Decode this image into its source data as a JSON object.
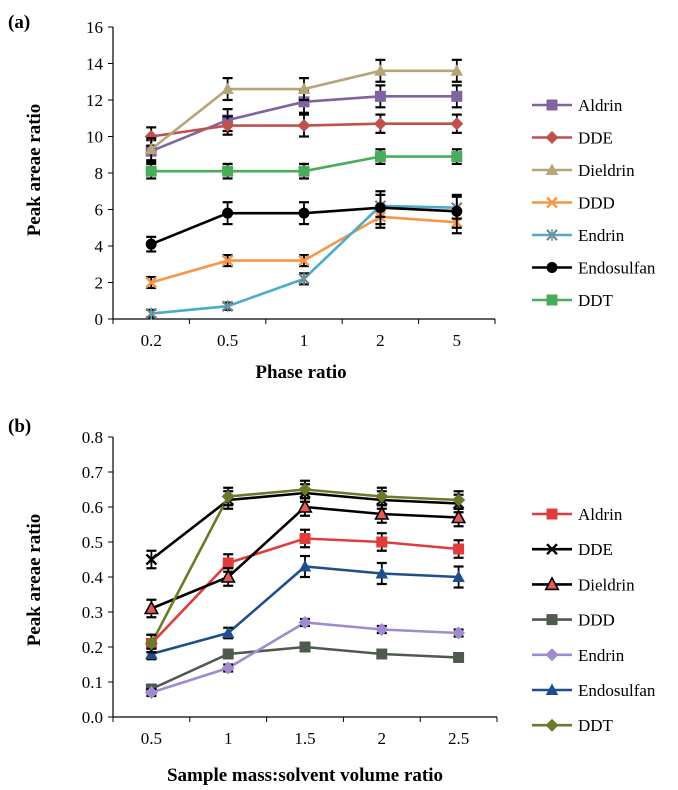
{
  "chart_data": [
    {
      "type": "line",
      "panel_label": "(a)",
      "title": "",
      "xlabel": "Phase ratio",
      "ylabel": "Peak areae ratio",
      "categories": [
        "0.2",
        "0.5",
        "1",
        "2",
        "5"
      ],
      "ylim": [
        0,
        16
      ],
      "yticks": [
        0,
        2,
        4,
        6,
        8,
        10,
        12,
        14,
        16
      ],
      "grid": false,
      "legend": "right",
      "error_bars": true,
      "series": [
        {
          "name": "Aldrin",
          "color": "#8064a2",
          "marker": "square",
          "values": [
            9.2,
            10.9,
            11.9,
            12.2,
            12.2
          ],
          "error": [
            0.6,
            0.6,
            0.6,
            0.6,
            0.6
          ]
        },
        {
          "name": "DDE",
          "color": "#c0504d",
          "marker": "diamond",
          "values": [
            10.0,
            10.6,
            10.6,
            10.7,
            10.7
          ],
          "error": [
            0.5,
            0.5,
            0.6,
            0.5,
            0.5
          ]
        },
        {
          "name": "Dieldrin",
          "color": "#b7a57a",
          "marker": "triangle",
          "values": [
            9.3,
            12.6,
            12.6,
            13.6,
            13.6
          ],
          "error": [
            0.6,
            0.6,
            0.6,
            0.6,
            0.6
          ]
        },
        {
          "name": "DDD",
          "color": "#f79646",
          "marker": "x",
          "values": [
            2.0,
            3.2,
            3.2,
            5.6,
            5.3
          ],
          "error": [
            0.3,
            0.3,
            0.3,
            0.6,
            0.6
          ]
        },
        {
          "name": "Endrin",
          "color": "#4bacc6",
          "marker": "star",
          "values": [
            0.3,
            0.7,
            2.2,
            6.2,
            6.1
          ],
          "error": [
            0.2,
            0.2,
            0.3,
            0.6,
            0.6
          ]
        },
        {
          "name": "Endosulfan",
          "color": "#000000",
          "marker": "circle",
          "values": [
            4.1,
            5.8,
            5.8,
            6.1,
            5.9
          ],
          "error": [
            0.4,
            0.6,
            0.6,
            0.9,
            0.9
          ]
        },
        {
          "name": "DDT",
          "color": "#4aac5b",
          "marker": "square",
          "values": [
            8.1,
            8.1,
            8.1,
            8.9,
            8.9
          ],
          "error": [
            0.4,
            0.4,
            0.4,
            0.4,
            0.4
          ]
        }
      ]
    },
    {
      "type": "line",
      "panel_label": "(b)",
      "title": "",
      "xlabel": "Sample mass:solvent volume ratio",
      "ylabel": "Peak areae ratio",
      "categories": [
        "0.5",
        "1",
        "1.5",
        "2",
        "2.5"
      ],
      "ylim": [
        0,
        0.8
      ],
      "yticks": [
        0,
        0.1,
        0.2,
        0.3,
        0.4,
        0.5,
        0.6,
        0.7,
        0.8
      ],
      "grid": false,
      "legend": "right",
      "error_bars": true,
      "series": [
        {
          "name": "Aldrin",
          "color": "#e03c3c",
          "marker": "square",
          "values": [
            0.21,
            0.44,
            0.51,
            0.5,
            0.48
          ],
          "error": [
            0.025,
            0.025,
            0.025,
            0.025,
            0.025
          ]
        },
        {
          "name": "DDE",
          "color": "#000000",
          "marker": "x",
          "values": [
            0.45,
            0.62,
            0.64,
            0.62,
            0.61
          ],
          "error": [
            0.025,
            0.025,
            0.025,
            0.025,
            0.025
          ]
        },
        {
          "name": "Dieldrin",
          "color": "#000000",
          "marker": "triangle-open",
          "values": [
            0.31,
            0.4,
            0.6,
            0.58,
            0.57
          ],
          "error": [
            0.025,
            0.025,
            0.025,
            0.025,
            0.025
          ]
        },
        {
          "name": "DDD",
          "color": "#4f5a4f",
          "marker": "square",
          "values": [
            0.08,
            0.18,
            0.2,
            0.18,
            0.17
          ],
          "error": [
            0.01,
            0.01,
            0.01,
            0.01,
            0.01
          ]
        },
        {
          "name": "Endrin",
          "color": "#a08ad0",
          "marker": "diamond",
          "values": [
            0.07,
            0.14,
            0.27,
            0.25,
            0.24
          ],
          "error": [
            0.01,
            0.01,
            0.01,
            0.01,
            0.01
          ]
        },
        {
          "name": "Endosulfan",
          "color": "#1f4e8c",
          "marker": "triangle",
          "values": [
            0.18,
            0.24,
            0.43,
            0.41,
            0.4
          ],
          "error": [
            0.015,
            0.015,
            0.03,
            0.03,
            0.03
          ]
        },
        {
          "name": "DDT",
          "color": "#6b7a2a",
          "marker": "diamond",
          "values": [
            0.21,
            0.63,
            0.65,
            0.63,
            0.62
          ],
          "error": [
            0.025,
            0.025,
            0.025,
            0.025,
            0.025
          ]
        }
      ]
    }
  ]
}
